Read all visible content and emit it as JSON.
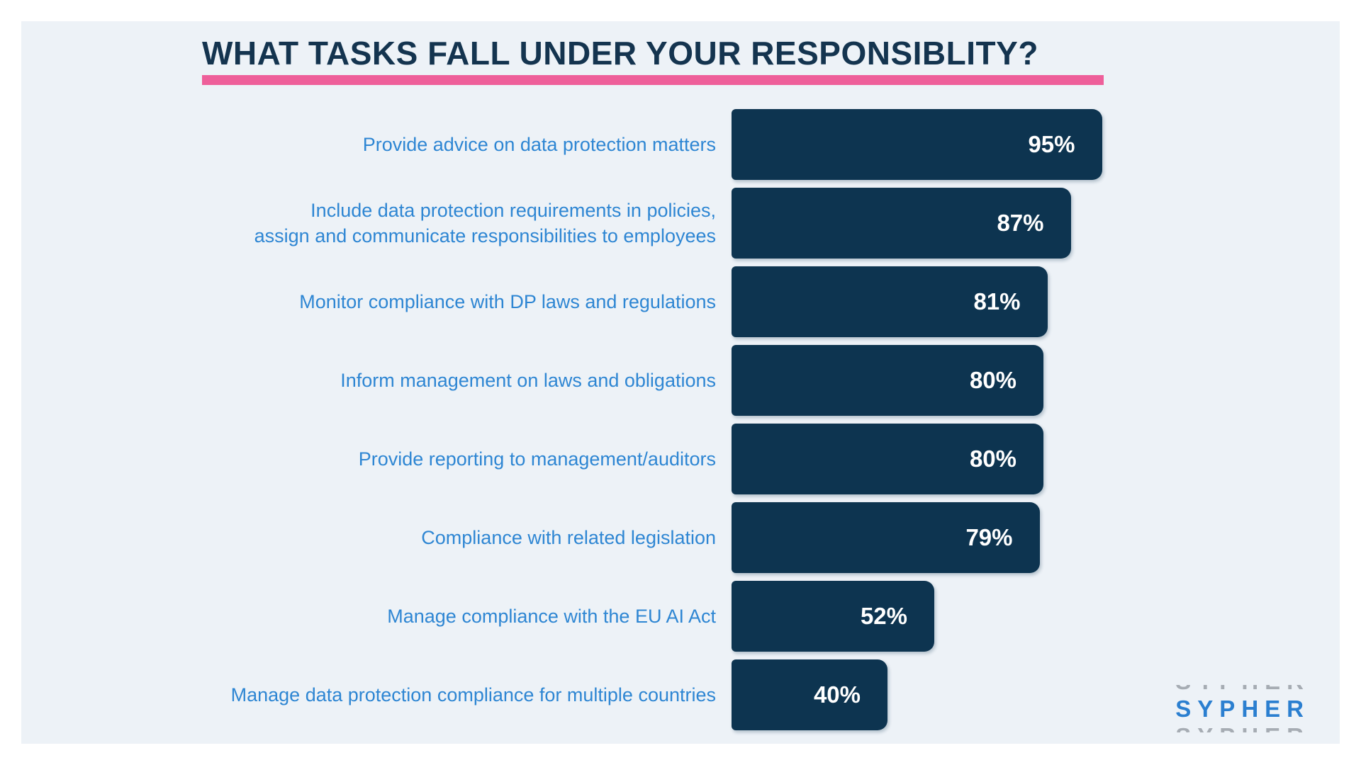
{
  "title": "WHAT TASKS FALL UNDER YOUR RESPONSIBLITY?",
  "colors": {
    "panel_bg": "#edf2f7",
    "title_navy": "#14344f",
    "accent_pink": "#ee5f9a",
    "bar": "#0d3450",
    "label_blue": "#2e86d3",
    "value_text": "#ffffff",
    "logo_blue": "#2b7fd0",
    "logo_ghost_gray": "#9aa0a8"
  },
  "chart_data": {
    "type": "bar",
    "orientation": "horizontal",
    "title": "WHAT TASKS FALL UNDER YOUR RESPONSIBLITY?",
    "unit": "%",
    "xlim": [
      0,
      100
    ],
    "gridlines": false,
    "legend": false,
    "value_labels": "inside-right",
    "rows": [
      {
        "label_lines": [
          "Provide advice on data protection matters"
        ],
        "value": 95,
        "value_label": "95%"
      },
      {
        "label_lines": [
          "Include data protection requirements in policies,",
          "assign and communicate responsibilities to employees"
        ],
        "value": 87,
        "value_label": "87%"
      },
      {
        "label_lines": [
          "Monitor compliance with DP laws and regulations"
        ],
        "value": 81,
        "value_label": "81%"
      },
      {
        "label_lines": [
          "Inform management on laws and obligations"
        ],
        "value": 80,
        "value_label": "80%"
      },
      {
        "label_lines": [
          "Provide reporting to management/auditors"
        ],
        "value": 80,
        "value_label": "80%"
      },
      {
        "label_lines": [
          "Compliance with related legislation"
        ],
        "value": 79,
        "value_label": "79%"
      },
      {
        "label_lines": [
          "Manage compliance with the EU AI Act"
        ],
        "value": 52,
        "value_label": "52%"
      },
      {
        "label_lines": [
          "Manage data protection compliance for multiple countries"
        ],
        "value": 40,
        "value_label": "40%"
      }
    ]
  },
  "logo": {
    "text": "SYPHER"
  }
}
